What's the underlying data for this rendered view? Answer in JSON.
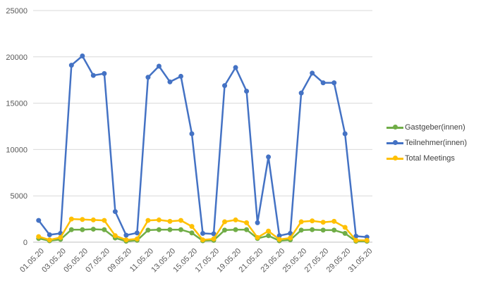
{
  "chart_data": {
    "type": "line",
    "title": "",
    "xlabel": "",
    "ylabel": "",
    "ylim": [
      0,
      25000
    ],
    "yticks": [
      0,
      5000,
      10000,
      15000,
      20000,
      25000
    ],
    "grid": true,
    "legend_position": "right",
    "x": [
      "01.05.20",
      "02.05.20",
      "03.05.20",
      "04.05.20",
      "05.05.20",
      "06.05.20",
      "07.05.20",
      "08.05.20",
      "09.05.20",
      "10.05.20",
      "11.05.20",
      "12.05.20",
      "13.05.20",
      "14.05.20",
      "15.05.20",
      "16.05.20",
      "17.05.20",
      "18.05.20",
      "19.05.20",
      "20.05.20",
      "21.05.20",
      "22.05.20",
      "23.05.20",
      "24.05.20",
      "25.05.20",
      "26.05.20",
      "27.05.20",
      "28.05.20",
      "29.05.20",
      "30.05.20",
      "31.05.20"
    ],
    "x_tick_labels": [
      "01.05.20",
      "03.05.20",
      "05.05.20",
      "07.05.20",
      "09.05.20",
      "11.05.20",
      "13.05.20",
      "15.05.20",
      "17.05.20",
      "19.05.20",
      "21.05.20",
      "23.05.20",
      "25.05.20",
      "27.05.20",
      "29.05.20",
      "31.05.20"
    ],
    "series": [
      {
        "name": "Gastgeber(innen)",
        "color": "#70AD47",
        "values": [
          400,
          150,
          300,
          1350,
          1350,
          1400,
          1350,
          450,
          100,
          200,
          1300,
          1350,
          1350,
          1350,
          1000,
          150,
          200,
          1300,
          1350,
          1350,
          400,
          700,
          150,
          250,
          1300,
          1350,
          1300,
          1300,
          950,
          100,
          100
        ]
      },
      {
        "name": "Teilnehmer(innen)",
        "color": "#4472C4",
        "values": [
          2350,
          800,
          950,
          19100,
          20100,
          18000,
          18200,
          3300,
          750,
          1000,
          17800,
          19000,
          17300,
          17900,
          11700,
          950,
          900,
          16900,
          18850,
          16300,
          2100,
          9200,
          700,
          950,
          16100,
          18250,
          17200,
          17200,
          11700,
          650,
          550
        ]
      },
      {
        "name": "Total Meetings",
        "color": "#FFC000",
        "values": [
          600,
          250,
          500,
          2500,
          2450,
          2400,
          2350,
          700,
          250,
          350,
          2350,
          2400,
          2250,
          2350,
          1700,
          250,
          350,
          2200,
          2400,
          2100,
          500,
          1200,
          300,
          450,
          2200,
          2300,
          2150,
          2250,
          1600,
          200,
          200
        ]
      }
    ]
  }
}
